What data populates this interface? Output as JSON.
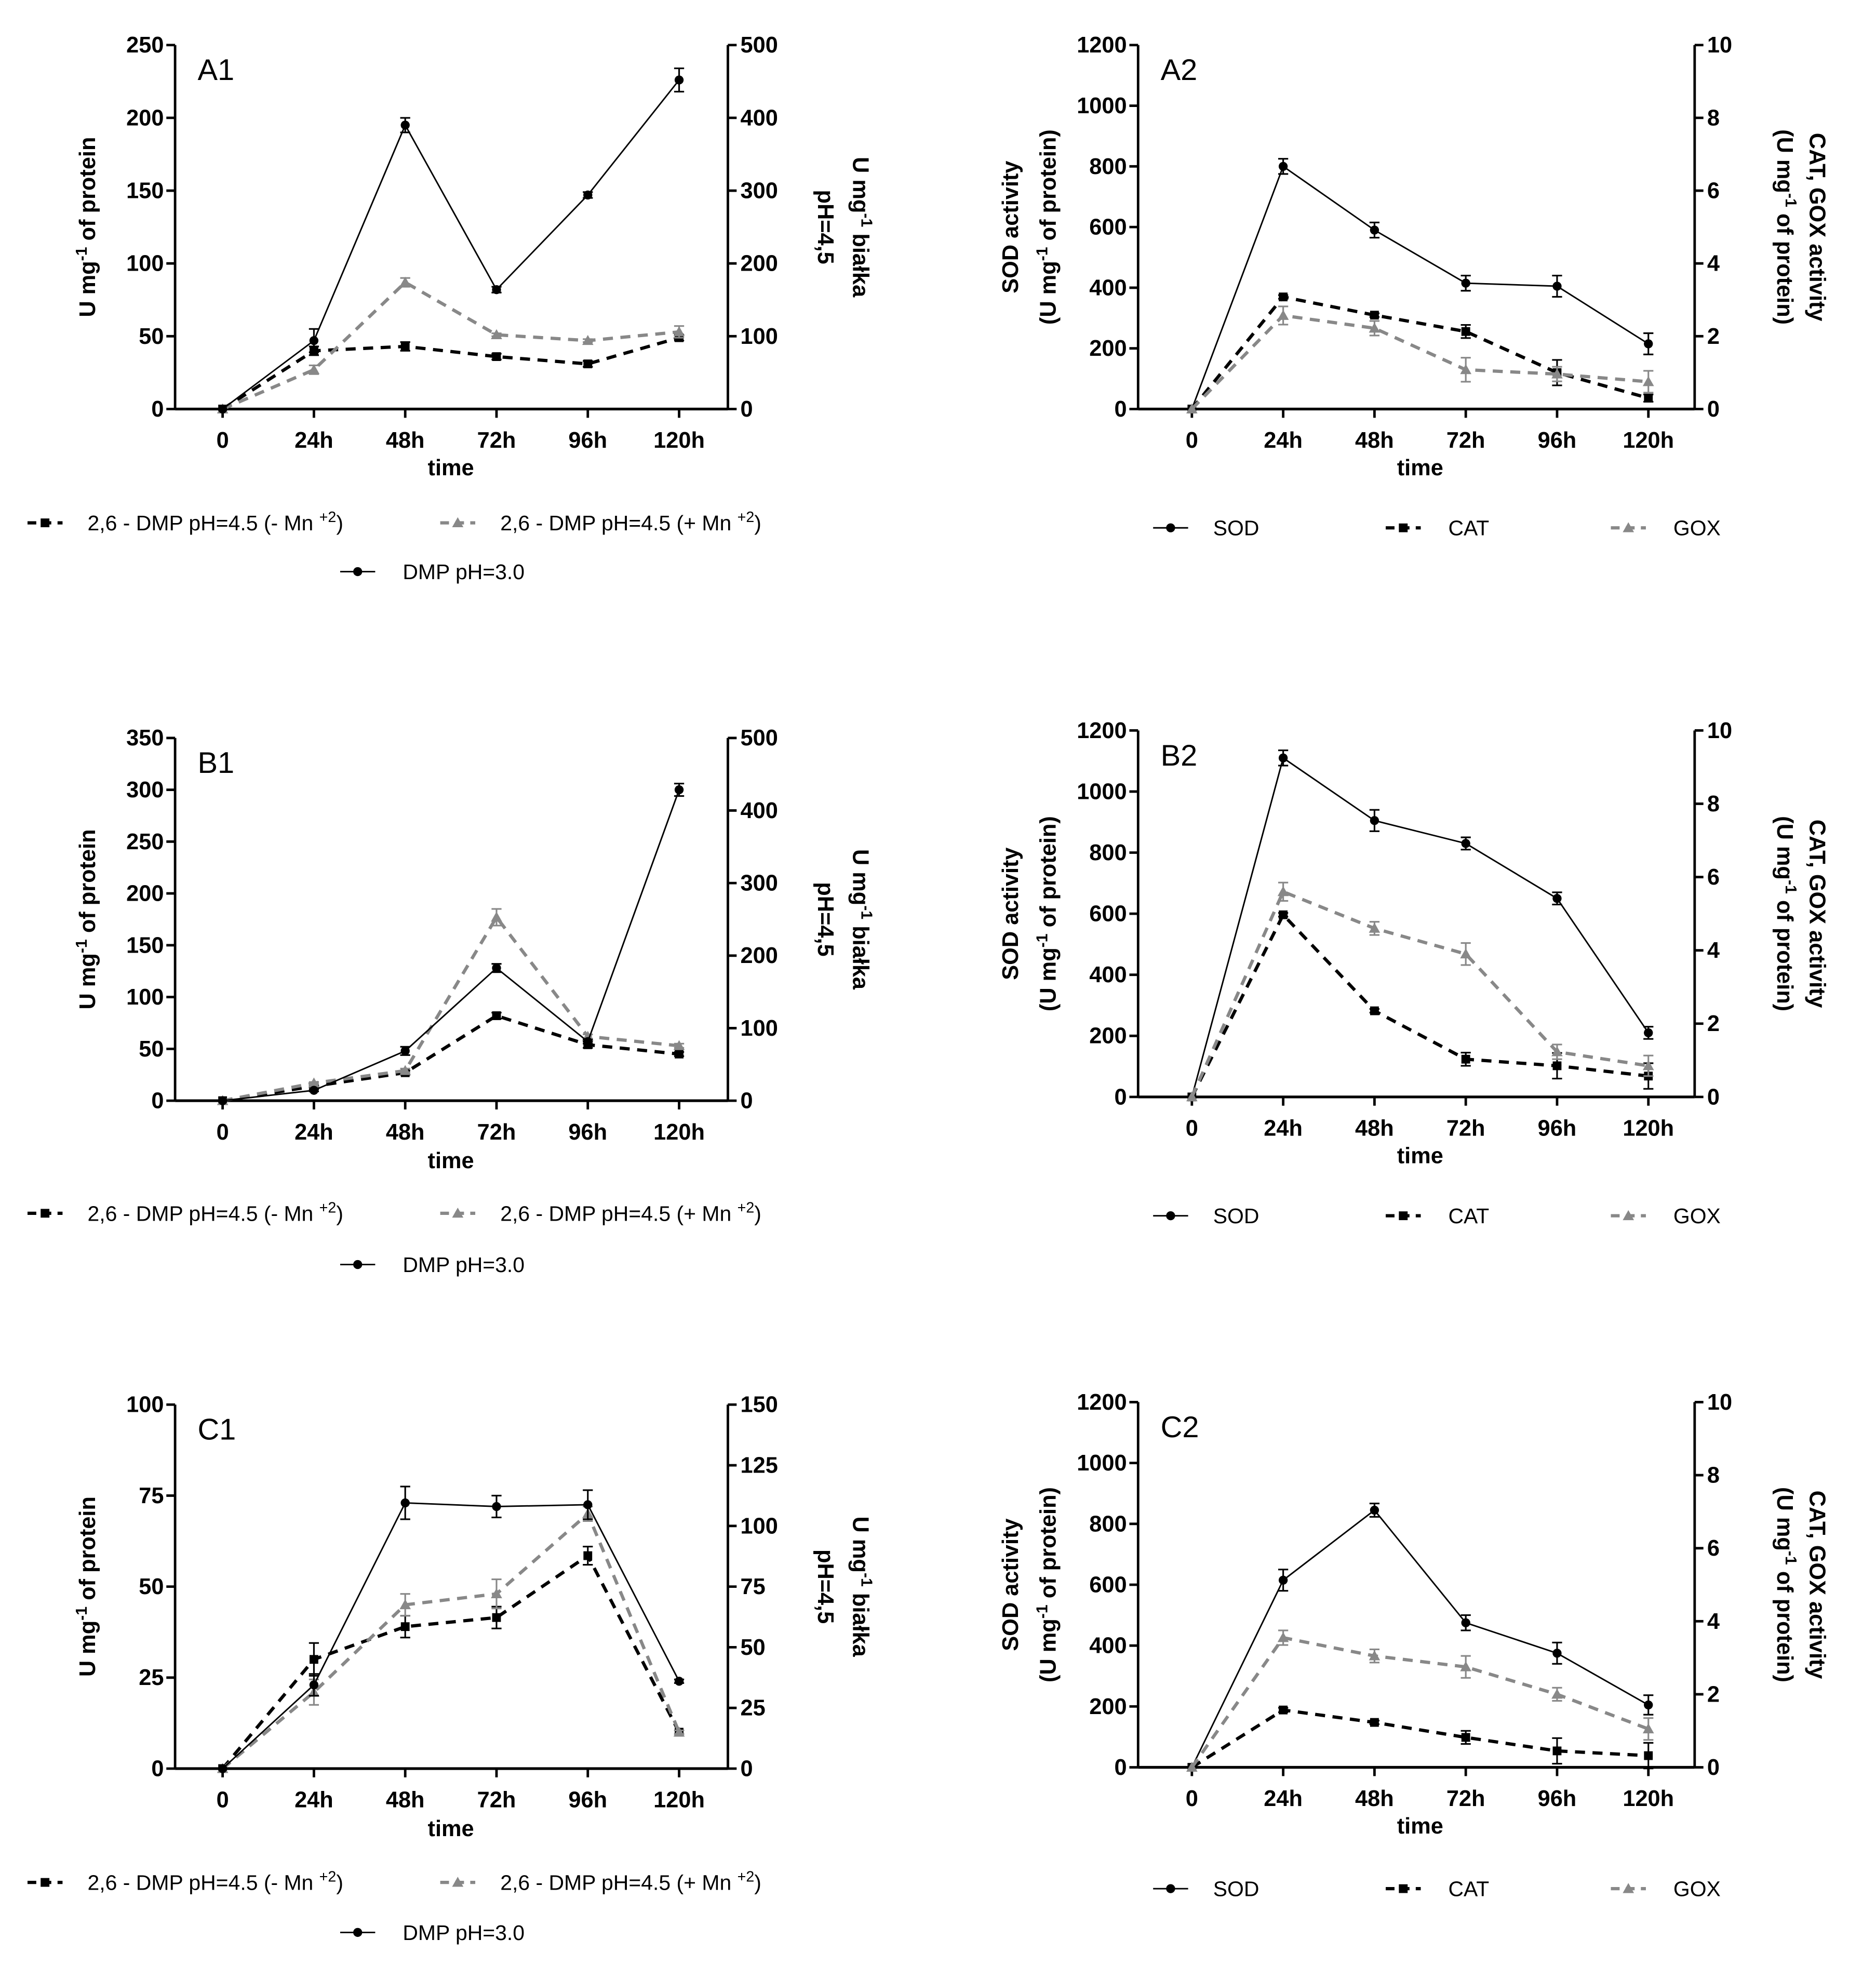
{
  "chart_data": [
    {
      "id": "A1",
      "type": "line",
      "panel_label": "A1",
      "xlabel": "time",
      "categories": [
        "0",
        "24h",
        "48h",
        "72h",
        "96h",
        "120h"
      ],
      "y_left": {
        "min": 0,
        "max": 250,
        "ticks": [
          0,
          50,
          100,
          150,
          200,
          250
        ]
      },
      "y_right": {
        "min": 0,
        "max": 500,
        "ticks": [
          0,
          100,
          200,
          300,
          400,
          500
        ]
      },
      "ylabel_left": [
        "U mg",
        "-1",
        " of protein"
      ],
      "ylabel_right": [
        [
          "U mg",
          "-1",
          " białka"
        ],
        [
          "pH=4,5",
          "",
          ""
        ]
      ],
      "series": [
        {
          "name": [
            "2,6 - DMP pH=4.5 (- Mn ",
            "+2",
            ")"
          ],
          "style": "black-dashed-square",
          "axis": "left",
          "values": [
            0,
            40,
            43,
            36,
            31,
            49
          ],
          "err": [
            0,
            3,
            3,
            2,
            2,
            2
          ]
        },
        {
          "name": [
            "2,6 - DMP pH=4.5 (+ Mn ",
            "+2",
            ")"
          ],
          "style": "gray-dashed-triangle",
          "axis": "left",
          "values": [
            0,
            27,
            87,
            51,
            47,
            53
          ],
          "err": [
            0,
            3,
            3,
            1,
            1,
            4
          ]
        },
        {
          "name": [
            "DMP pH=3.0",
            "",
            ""
          ],
          "style": "black-solid-circle",
          "axis": "left",
          "values": [
            0,
            47,
            195,
            82,
            147,
            226
          ],
          "err": [
            0,
            8,
            5,
            2,
            2,
            8
          ]
        }
      ]
    },
    {
      "id": "A2",
      "type": "line",
      "panel_label": "A2",
      "xlabel": "time",
      "categories": [
        "0",
        "24h",
        "48h",
        "72h",
        "96h",
        "120h"
      ],
      "y_left": {
        "min": 0,
        "max": 1200,
        "ticks": [
          0,
          200,
          400,
          600,
          800,
          1000,
          1200
        ]
      },
      "y_right": {
        "min": 0,
        "max": 10,
        "ticks": [
          0,
          2,
          4,
          6,
          8,
          10
        ]
      },
      "ylabel_left": [
        [
          "SOD activity",
          "",
          ""
        ],
        [
          "(U mg",
          "-1",
          " of protein)"
        ]
      ],
      "ylabel_right": [
        [
          "CAT, GOX activity",
          "",
          ""
        ],
        [
          "(U mg",
          "-1",
          " of protein)"
        ]
      ],
      "series": [
        {
          "name": [
            "SOD",
            "",
            ""
          ],
          "style": "black-solid-circle",
          "axis": "left",
          "values": [
            0,
            800,
            590,
            415,
            405,
            215
          ],
          "err": [
            0,
            25,
            25,
            25,
            35,
            35
          ]
        },
        {
          "name": [
            "CAT",
            "",
            ""
          ],
          "style": "black-dashed-square",
          "axis": "right",
          "values": [
            0,
            3.08,
            2.58,
            2.13,
            1.0,
            0.3
          ],
          "err": [
            0,
            0.05,
            0.05,
            0.18,
            0.35,
            0.1
          ]
        },
        {
          "name": [
            "GOX",
            "",
            ""
          ],
          "style": "gray-dashed-triangle",
          "axis": "right",
          "values": [
            0,
            2.57,
            2.22,
            1.08,
            0.96,
            0.75
          ],
          "err": [
            0,
            0.25,
            0.2,
            0.33,
            0.2,
            0.3
          ]
        }
      ]
    },
    {
      "id": "B1",
      "type": "line",
      "panel_label": "B1",
      "xlabel": "time",
      "categories": [
        "0",
        "24h",
        "48h",
        "72h",
        "96h",
        "120h"
      ],
      "y_left": {
        "min": 0,
        "max": 350,
        "ticks": [
          0,
          50,
          100,
          150,
          200,
          250,
          300,
          350
        ]
      },
      "y_right": {
        "min": 0,
        "max": 500,
        "ticks": [
          0,
          100,
          200,
          300,
          400,
          500
        ]
      },
      "ylabel_left": [
        "U mg",
        "-1",
        " of protein"
      ],
      "ylabel_right": [
        [
          "U mg",
          "-1",
          " białka"
        ],
        [
          "pH=4,5",
          "",
          ""
        ]
      ],
      "series": [
        {
          "name": [
            "2,6 - DMP pH=4.5 (- Mn ",
            "+2",
            ")"
          ],
          "style": "black-dashed-square",
          "axis": "left",
          "values": [
            0,
            14,
            27,
            82,
            54,
            45
          ],
          "err": [
            0,
            1,
            2,
            3,
            3,
            2
          ]
        },
        {
          "name": [
            "2,6 - DMP pH=4.5 (+ Mn ",
            "+2",
            ")"
          ],
          "style": "gray-dashed-triangle",
          "axis": "left",
          "values": [
            0,
            17,
            29,
            177,
            62,
            53
          ],
          "err": [
            0,
            1,
            2,
            8,
            2,
            2
          ]
        },
        {
          "name": [
            "DMP pH=3.0",
            "",
            ""
          ],
          "style": "black-solid-circle",
          "axis": "left",
          "values": [
            0,
            10,
            48,
            128,
            57,
            300
          ],
          "err": [
            0,
            1,
            4,
            4,
            2,
            6
          ]
        }
      ]
    },
    {
      "id": "B2",
      "type": "line",
      "panel_label": "B2",
      "xlabel": "time",
      "categories": [
        "0",
        "24h",
        "48h",
        "72h",
        "96h",
        "120h"
      ],
      "y_left": {
        "min": 0,
        "max": 1200,
        "ticks": [
          0,
          200,
          400,
          600,
          800,
          1000,
          1200
        ]
      },
      "y_right": {
        "min": 0,
        "max": 10,
        "ticks": [
          0,
          2,
          4,
          6,
          8,
          10
        ]
      },
      "ylabel_left": [
        [
          "SOD activity",
          "",
          ""
        ],
        [
          "(U mg",
          "-1",
          " of protein)"
        ]
      ],
      "ylabel_right": [
        [
          "CAT, GOX activity",
          "",
          ""
        ],
        [
          "(U mg",
          "-1",
          " of protein)"
        ]
      ],
      "series": [
        {
          "name": [
            "SOD",
            "",
            ""
          ],
          "style": "black-solid-circle",
          "axis": "left",
          "values": [
            0,
            1110,
            905,
            830,
            650,
            210
          ],
          "err": [
            0,
            25,
            35,
            20,
            20,
            20
          ]
        },
        {
          "name": [
            "CAT",
            "",
            ""
          ],
          "style": "black-dashed-square",
          "axis": "right",
          "values": [
            0,
            4.97,
            2.35,
            1.03,
            0.85,
            0.57
          ],
          "err": [
            0,
            0.05,
            0.05,
            0.18,
            0.35,
            0.35
          ]
        },
        {
          "name": [
            "GOX",
            "",
            ""
          ],
          "style": "gray-dashed-triangle",
          "axis": "right",
          "values": [
            0,
            5.6,
            4.6,
            3.9,
            1.23,
            0.85
          ],
          "err": [
            0,
            0.25,
            0.18,
            0.3,
            0.2,
            0.28
          ]
        }
      ]
    },
    {
      "id": "C1",
      "type": "line",
      "panel_label": "C1",
      "xlabel": "time",
      "categories": [
        "0",
        "24h",
        "48h",
        "72h",
        "96h",
        "120h"
      ],
      "y_left": {
        "min": 0,
        "max": 100,
        "ticks": [
          0,
          25,
          50,
          75,
          100
        ]
      },
      "y_right": {
        "min": 0,
        "max": 150,
        "ticks": [
          0,
          25,
          50,
          75,
          100,
          125,
          150
        ]
      },
      "ylabel_left": [
        "U mg",
        "-1",
        " of protein"
      ],
      "ylabel_right": [
        [
          "U mg",
          "-1",
          " białka"
        ],
        [
          "pH=4,5",
          "",
          ""
        ]
      ],
      "series": [
        {
          "name": [
            "2,6 - DMP pH=4.5 (- Mn ",
            "+2",
            ")"
          ],
          "style": "black-dashed-square",
          "axis": "left",
          "values": [
            0,
            30,
            39,
            41.5,
            58.5,
            10
          ],
          "err": [
            0,
            4.5,
            3,
            3,
            2.5,
            0.5
          ]
        },
        {
          "name": [
            "2,6 - DMP pH=4.5 (+ Mn ",
            "+2",
            ")"
          ],
          "style": "gray-dashed-triangle",
          "axis": "left",
          "values": [
            0,
            21,
            45,
            48,
            70,
            10
          ],
          "err": [
            0,
            3.5,
            3,
            4,
            2,
            0.5
          ]
        },
        {
          "name": [
            "DMP pH=3.0",
            "",
            ""
          ],
          "style": "black-solid-circle",
          "axis": "left",
          "values": [
            0,
            23,
            73,
            72,
            72.5,
            24
          ],
          "err": [
            0,
            3,
            4.5,
            3,
            4,
            0.5
          ]
        }
      ]
    },
    {
      "id": "C2",
      "type": "line",
      "panel_label": "C2",
      "xlabel": "time",
      "categories": [
        "0",
        "24h",
        "48h",
        "72h",
        "96h",
        "120h"
      ],
      "y_left": {
        "min": 0,
        "max": 1200,
        "ticks": [
          0,
          200,
          400,
          600,
          800,
          1000,
          1200
        ]
      },
      "y_right": {
        "min": 0,
        "max": 10,
        "ticks": [
          0,
          2,
          4,
          6,
          8,
          10
        ]
      },
      "ylabel_left": [
        [
          "SOD activity",
          "",
          ""
        ],
        [
          "(U mg",
          "-1",
          " of protein)"
        ]
      ],
      "ylabel_right": [
        [
          "CAT, GOX activity",
          "",
          ""
        ],
        [
          "(U mg",
          "-1",
          " of protein)"
        ]
      ],
      "series": [
        {
          "name": [
            "SOD",
            "",
            ""
          ],
          "style": "black-solid-circle",
          "axis": "left",
          "values": [
            0,
            615,
            845,
            475,
            375,
            205
          ],
          "err": [
            0,
            35,
            22,
            25,
            35,
            32
          ]
        },
        {
          "name": [
            "CAT",
            "",
            ""
          ],
          "style": "black-dashed-square",
          "axis": "right",
          "values": [
            0,
            1.57,
            1.23,
            0.82,
            0.45,
            0.32
          ],
          "err": [
            0,
            0.06,
            0.05,
            0.18,
            0.35,
            0.35
          ]
        },
        {
          "name": [
            "GOX",
            "",
            ""
          ],
          "style": "gray-dashed-triangle",
          "axis": "right",
          "values": [
            0,
            3.55,
            3.05,
            2.75,
            2.0,
            1.05
          ],
          "err": [
            0,
            0.2,
            0.18,
            0.3,
            0.18,
            0.3
          ]
        }
      ]
    }
  ]
}
